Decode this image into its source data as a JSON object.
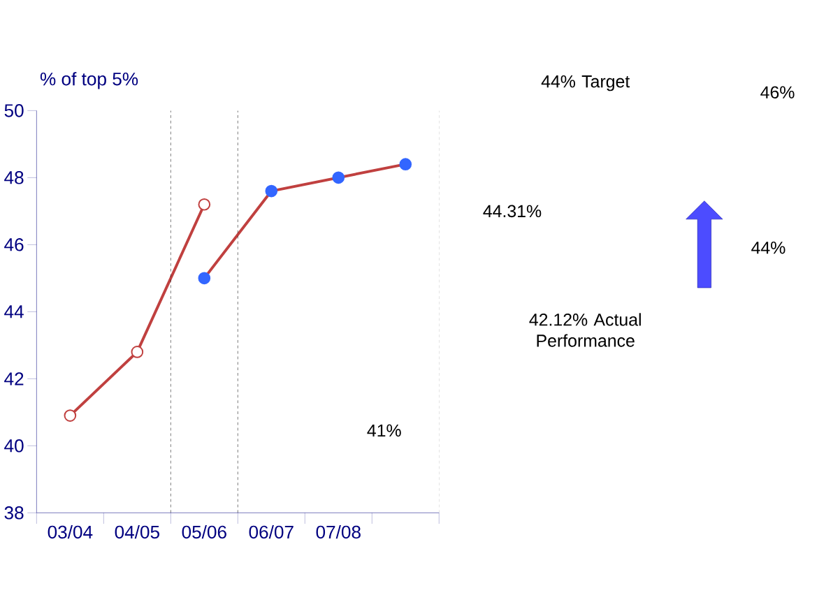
{
  "chart_data": {
    "type": "line",
    "ylabel": "% of top 5%",
    "categories": [
      "03/04",
      "04/05",
      "05/06",
      "06/07",
      "07/08",
      null
    ],
    "series": [
      {
        "color": "#c0403f",
        "values": [
          40.9,
          42.8,
          47.2,
          null,
          null,
          null
        ]
      },
      {
        "color": "#3366ff",
        "values": [
          null,
          null,
          45.0,
          47.6,
          48.0,
          48.4
        ]
      }
    ],
    "ylim": [
      38,
      50
    ],
    "yticks": [
      38,
      40,
      42,
      44,
      46,
      48,
      50
    ],
    "marker": "circle",
    "grid": false,
    "annotations": [
      "41%",
      "44.31%",
      "44% Target",
      "42.12% Actual Performance",
      "44%",
      "46%"
    ]
  }
}
